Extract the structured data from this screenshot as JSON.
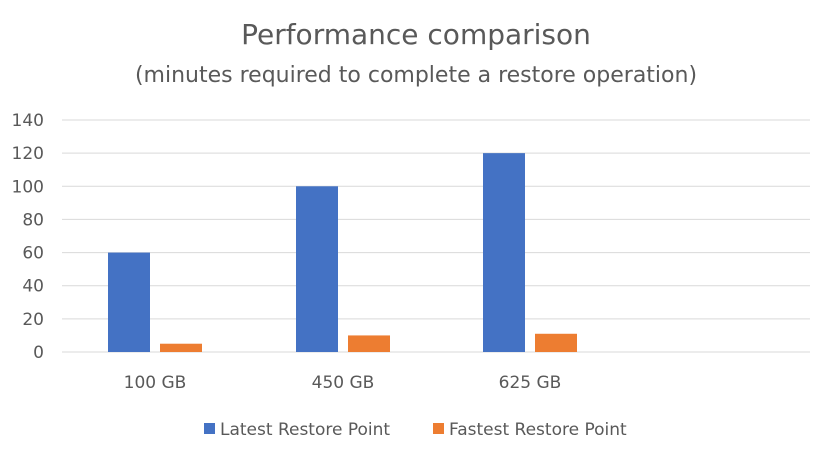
{
  "chart_data": {
    "type": "bar",
    "title": "Performance comparison",
    "subtitle": "(minutes required to complete a restore operation)",
    "categories": [
      "100 GB",
      "450 GB",
      "625 GB"
    ],
    "series": [
      {
        "name": "Latest Restore Point",
        "values": [
          60,
          100,
          120
        ],
        "color": "#4472C4"
      },
      {
        "name": "Fastest Restore Point",
        "values": [
          5,
          10,
          11
        ],
        "color": "#ED7D31"
      }
    ],
    "ylim": [
      0,
      140
    ],
    "yticks": [
      0,
      20,
      40,
      60,
      80,
      100,
      120,
      140
    ],
    "grid": true,
    "legend": "bottom",
    "xlabel": "",
    "ylabel": ""
  }
}
